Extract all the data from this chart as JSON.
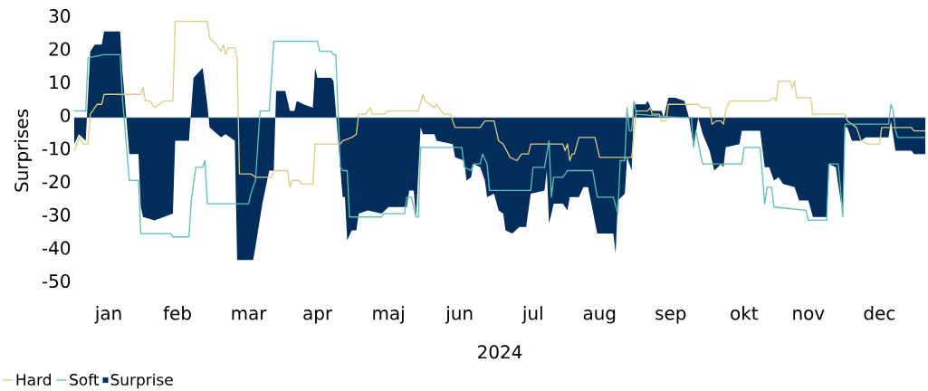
{
  "chart_data": {
    "type": "line",
    "xlabel": "2024",
    "ylabel": "Surprises",
    "legend": "bottom left",
    "xlim": [
      "2024-01-01",
      "2025-01-06"
    ],
    "xticks": [
      {
        "value": "2024-01-16",
        "label": "jan"
      },
      {
        "value": "2024-02-15",
        "label": "feb"
      },
      {
        "value": "2024-03-17",
        "label": "mar"
      },
      {
        "value": "2024-04-16",
        "label": "apr"
      },
      {
        "value": "2024-05-17",
        "label": "maj"
      },
      {
        "value": "2024-06-17",
        "label": "jun"
      },
      {
        "value": "2024-07-19",
        "label": "jul"
      },
      {
        "value": "2024-08-17",
        "label": "aug"
      },
      {
        "value": "2024-09-17",
        "label": "sep"
      },
      {
        "value": "2024-10-19",
        "label": "okt"
      },
      {
        "value": "2024-11-16",
        "label": "nov"
      },
      {
        "value": "2024-12-17",
        "label": "dec"
      }
    ],
    "ylim": [
      -50,
      30
    ],
    "ref_lines": [
      {
        "axis": "y",
        "value": 0,
        "color": "#8497b0"
      }
    ],
    "yticks": [
      -50,
      -40,
      -30,
      -20,
      -10,
      0,
      10,
      20,
      30
    ],
    "series": [
      {
        "name": "Hard",
        "color": "#dccb83",
        "x": [
          "2024-01-01",
          "2024-01-03",
          "2024-01-05",
          "2024-01-07",
          "2024-01-08",
          "2024-01-09",
          "2024-01-11",
          "2024-01-13",
          "2024-01-14",
          "2024-01-30",
          "2024-01-31",
          "2024-02-01",
          "2024-02-03",
          "2024-02-05",
          "2024-02-07",
          "2024-02-09",
          "2024-02-13",
          "2024-02-14",
          "2024-02-28",
          "2024-02-29",
          "2024-03-03",
          "2024-03-05",
          "2024-03-06",
          "2024-03-07",
          "2024-03-08",
          "2024-03-11",
          "2024-03-12",
          "2024-03-13",
          "2024-03-18",
          "2024-03-20",
          "2024-03-27",
          "2024-03-28",
          "2024-04-03",
          "2024-04-04",
          "2024-04-05",
          "2024-04-08",
          "2024-04-09",
          "2024-04-14",
          "2024-04-15",
          "2024-04-26",
          "2024-04-27",
          "2024-05-01",
          "2024-05-03",
          "2024-05-04",
          "2024-05-07",
          "2024-05-09",
          "2024-05-10",
          "2024-05-15",
          "2024-05-17",
          "2024-05-30",
          "2024-06-01",
          "2024-06-02",
          "2024-06-04",
          "2024-06-06",
          "2024-06-07",
          "2024-06-09",
          "2024-06-10",
          "2024-06-13",
          "2024-06-15",
          "2024-06-26",
          "2024-06-28",
          "2024-07-02",
          "2024-07-04",
          "2024-07-06",
          "2024-07-09",
          "2024-07-12",
          "2024-07-14",
          "2024-07-17",
          "2024-07-18",
          "2024-08-01",
          "2024-08-02",
          "2024-08-03",
          "2024-08-04",
          "2024-08-05",
          "2024-08-06",
          "2024-08-08",
          "2024-08-15",
          "2024-08-17",
          "2024-08-31",
          "2024-09-02",
          "2024-09-07",
          "2024-09-08",
          "2024-09-09",
          "2024-09-12",
          "2024-09-13",
          "2024-09-15",
          "2024-09-16",
          "2024-09-29",
          "2024-09-30",
          "2024-10-04",
          "2024-10-05",
          "2024-10-07",
          "2024-10-09",
          "2024-10-10",
          "2024-10-11",
          "2024-10-12",
          "2024-10-13",
          "2024-10-30",
          "2024-11-01",
          "2024-11-02",
          "2024-11-03",
          "2024-11-08",
          "2024-11-09",
          "2024-11-10",
          "2024-11-11",
          "2024-11-17",
          "2024-11-18",
          "2024-12-02",
          "2024-12-03",
          "2024-12-07",
          "2024-12-09",
          "2024-12-12",
          "2024-12-17",
          "2024-12-18",
          "2024-12-31",
          "2025-01-01",
          "2025-01-06"
        ],
        "values": [
          -10,
          -6,
          -8,
          -8,
          1,
          2,
          4,
          4,
          7,
          7,
          9,
          5,
          5,
          3,
          4,
          5,
          5,
          29,
          29,
          24,
          22,
          20,
          22,
          19,
          21,
          21,
          18,
          -17,
          -17,
          -18,
          -18,
          -16,
          -16,
          -21,
          -19,
          -19,
          -20,
          -20,
          -8,
          -8,
          -7,
          -6,
          -5,
          1,
          1,
          3,
          1,
          1,
          2,
          2,
          7,
          5,
          4,
          3,
          4,
          2,
          1,
          1,
          -3,
          -3,
          -1,
          -1,
          -7,
          -8,
          -12,
          -13,
          -11,
          -11,
          -8,
          -8,
          -10,
          -8,
          -13,
          -11,
          -11,
          -6,
          -6,
          -12,
          -12,
          2,
          2,
          3,
          1,
          1,
          -1,
          -1,
          4,
          4,
          3,
          3,
          -2,
          -1,
          -1,
          -2,
          2,
          4,
          5,
          5,
          6,
          5,
          11,
          11,
          9,
          11,
          6,
          6,
          1,
          1,
          -1,
          -3,
          -7,
          -8,
          -8,
          -3,
          -3,
          -4,
          -4
        ]
      },
      {
        "name": "Soft",
        "color": "#5dbfb0",
        "x": [
          "2024-01-01",
          "2024-01-06",
          "2024-01-07",
          "2024-01-14",
          "2024-01-21",
          "2024-01-22",
          "2024-01-25",
          "2024-01-29",
          "2024-01-30",
          "2024-02-12",
          "2024-02-13",
          "2024-02-20",
          "2024-02-21",
          "2024-02-23",
          "2024-02-26",
          "2024-02-27",
          "2024-02-28",
          "2024-03-17",
          "2024-03-18",
          "2024-03-20",
          "2024-03-22",
          "2024-03-26",
          "2024-03-28",
          "2024-04-16",
          "2024-04-17",
          "2024-04-22",
          "2024-04-23",
          "2024-04-24",
          "2024-04-26",
          "2024-04-27",
          "2024-04-29",
          "2024-04-30",
          "2024-05-14",
          "2024-05-15",
          "2024-05-24",
          "2024-05-25",
          "2024-05-27",
          "2024-05-29",
          "2024-05-30",
          "2024-05-31",
          "2024-06-18",
          "2024-06-19",
          "2024-06-22",
          "2024-06-23",
          "2024-06-26",
          "2024-06-27",
          "2024-06-29",
          "2024-06-30",
          "2024-07-18",
          "2024-07-19",
          "2024-07-24",
          "2024-07-26",
          "2024-07-27",
          "2024-07-28",
          "2024-08-01",
          "2024-08-03",
          "2024-08-14",
          "2024-08-16",
          "2024-08-23",
          "2024-08-25",
          "2024-08-26",
          "2024-08-28",
          "2024-08-29",
          "2024-08-30",
          "2024-08-31",
          "2024-09-01",
          "2024-09-02",
          "2024-09-21",
          "2024-09-26",
          "2024-09-27",
          "2024-09-28",
          "2024-09-30",
          "2024-10-01",
          "2024-10-18",
          "2024-10-19",
          "2024-10-26",
          "2024-10-28",
          "2024-10-29",
          "2024-10-31",
          "2024-11-01",
          "2024-11-15",
          "2024-11-16",
          "2024-11-24",
          "2024-11-25",
          "2024-11-29",
          "2024-11-30",
          "2024-12-01",
          "2024-12-02",
          "2024-12-21",
          "2024-12-22",
          "2024-12-23",
          "2024-12-24",
          "2024-12-25",
          "2025-01-06"
        ],
        "values": [
          2,
          2,
          18,
          19,
          19,
          6,
          -19,
          -19,
          -35,
          -35,
          -36,
          -36,
          -25,
          -15,
          -15,
          -13,
          -26,
          -26,
          -23,
          -19,
          2,
          2,
          23,
          23,
          20,
          20,
          19,
          19,
          -15,
          -16,
          -16,
          -30,
          -30,
          -29,
          -29,
          -24,
          -24,
          -30,
          -30,
          -9,
          -9,
          -15,
          -16,
          -14,
          -14,
          -11,
          -14,
          -22,
          -22,
          -15,
          -15,
          -7,
          -24,
          -18,
          -18,
          -16,
          -16,
          -24,
          -24,
          -29,
          -13,
          -13,
          3,
          -4,
          -4,
          5,
          1,
          0,
          0,
          -9,
          -4,
          -11,
          -14,
          -14,
          -9,
          -9,
          -26,
          -21,
          -21,
          -27,
          -28,
          -31,
          -31,
          -14,
          -14,
          -21,
          -30,
          -2,
          -2,
          4,
          2,
          -4,
          -6,
          -6
        ]
      },
      {
        "name": "Surprise",
        "type": "area",
        "color": "#002d5c",
        "x": [
          "2024-01-01",
          "2024-01-03",
          "2024-01-06",
          "2024-01-08",
          "2024-01-10",
          "2024-01-13",
          "2024-01-14",
          "2024-01-21",
          "2024-01-22",
          "2024-01-23",
          "2024-01-25",
          "2024-01-29",
          "2024-01-30",
          "2024-01-31",
          "2024-02-05",
          "2024-02-09",
          "2024-02-13",
          "2024-02-14",
          "2024-02-20",
          "2024-02-22",
          "2024-02-26",
          "2024-02-28",
          "2024-02-29",
          "2024-03-05",
          "2024-03-07",
          "2024-03-11",
          "2024-03-12",
          "2024-03-19",
          "2024-03-20",
          "2024-03-23",
          "2024-03-26",
          "2024-03-28",
          "2024-03-29",
          "2024-04-02",
          "2024-04-04",
          "2024-04-06",
          "2024-04-07",
          "2024-04-10",
          "2024-04-14",
          "2024-04-15",
          "2024-04-16",
          "2024-04-22",
          "2024-04-23",
          "2024-04-27",
          "2024-04-28",
          "2024-04-29",
          "2024-05-01",
          "2024-05-03",
          "2024-05-04",
          "2024-05-08",
          "2024-05-14",
          "2024-05-17",
          "2024-05-25",
          "2024-05-26",
          "2024-05-28",
          "2024-05-29",
          "2024-05-31",
          "2024-06-01",
          "2024-06-06",
          "2024-06-07",
          "2024-06-14",
          "2024-06-15",
          "2024-06-19",
          "2024-06-20",
          "2024-06-22",
          "2024-06-23",
          "2024-06-26",
          "2024-06-28",
          "2024-06-29",
          "2024-07-02",
          "2024-07-04",
          "2024-07-06",
          "2024-07-07",
          "2024-07-10",
          "2024-07-13",
          "2024-07-16",
          "2024-07-18",
          "2024-07-24",
          "2024-07-25",
          "2024-07-26",
          "2024-07-28",
          "2024-08-01",
          "2024-08-03",
          "2024-08-04",
          "2024-08-08",
          "2024-08-10",
          "2024-08-12",
          "2024-08-16",
          "2024-08-23",
          "2024-08-24",
          "2024-08-25",
          "2024-08-28",
          "2024-08-29",
          "2024-08-31",
          "2024-09-01",
          "2024-09-06",
          "2024-09-07",
          "2024-09-09",
          "2024-09-13",
          "2024-09-14",
          "2024-09-16",
          "2024-09-19",
          "2024-09-23",
          "2024-09-25",
          "2024-09-27",
          "2024-09-29",
          "2024-10-01",
          "2024-10-04",
          "2024-10-06",
          "2024-10-09",
          "2024-10-10",
          "2024-10-11",
          "2024-10-17",
          "2024-10-18",
          "2024-10-26",
          "2024-10-28",
          "2024-10-30",
          "2024-11-01",
          "2024-11-03",
          "2024-11-05",
          "2024-11-10",
          "2024-11-12",
          "2024-11-16",
          "2024-11-18",
          "2024-11-24",
          "2024-11-25",
          "2024-11-28",
          "2024-11-29",
          "2024-12-01",
          "2024-12-02",
          "2024-12-03",
          "2024-12-05",
          "2024-12-09",
          "2024-12-11",
          "2024-12-21",
          "2024-12-22",
          "2024-12-24",
          "2024-12-31",
          "2025-01-01",
          "2025-01-06"
        ],
        "values": [
          -8,
          -5,
          -7,
          20,
          22,
          22,
          26,
          26,
          14,
          6,
          -11,
          -11,
          -27,
          -30,
          -31,
          -30,
          -29,
          -7,
          -7,
          12,
          15,
          4,
          -3,
          -6,
          -5,
          -7,
          -43,
          -43,
          -39,
          -26,
          -16,
          -16,
          8,
          8,
          2,
          2,
          5,
          4,
          3,
          15,
          12,
          12,
          11,
          -24,
          -24,
          -37,
          -34,
          -34,
          -29,
          -28,
          -29,
          -27,
          -27,
          -22,
          -22,
          -30,
          -3,
          -5,
          -5,
          -7,
          -8,
          -12,
          -13,
          -19,
          -18,
          -14,
          -15,
          -19,
          -24,
          -23,
          -28,
          -29,
          -34,
          -35,
          -33,
          -33,
          -23,
          -22,
          -16,
          -32,
          -26,
          -26,
          -28,
          -24,
          -24,
          -21,
          -21,
          -35,
          -35,
          -41,
          -25,
          -23,
          -12,
          -16,
          4,
          4,
          5,
          2,
          2,
          0,
          6,
          6,
          5,
          0,
          -9,
          0,
          -5,
          -10,
          -16,
          -14,
          -15,
          -9,
          -8,
          -4,
          -4,
          -15,
          -15,
          -19,
          -18,
          -20,
          -21,
          -25,
          -25,
          -30,
          -30,
          -14,
          -15,
          -20,
          -29,
          -3,
          -3,
          -7,
          -7,
          -6,
          -6,
          -1,
          -10,
          -10,
          -11,
          -11
        ]
      }
    ]
  }
}
